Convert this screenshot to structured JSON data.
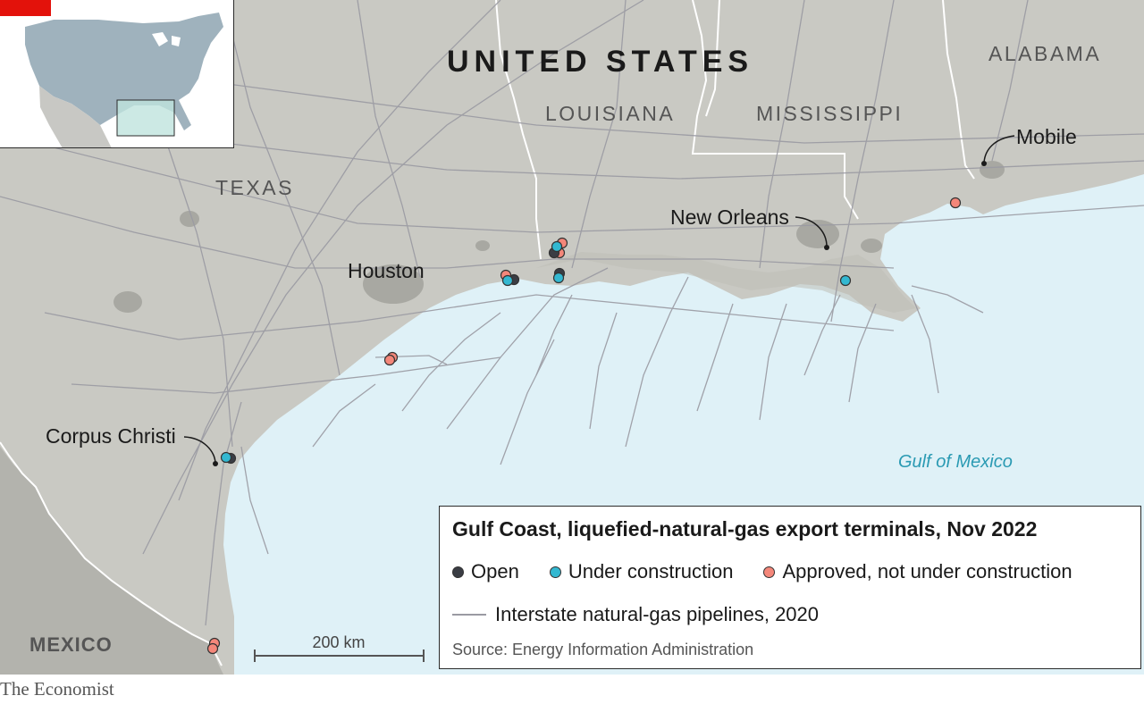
{
  "colors": {
    "land": "#c9c9c3",
    "water": "#dff1f7",
    "pipeline": "#9a9aa2",
    "open": "#3a3d44",
    "under_construction": "#33b8d1",
    "approved": "#f4877a",
    "gulf_label": "#2a9ab3",
    "brand_red": "#e3120b"
  },
  "map": {
    "country_label": "UNITED STATES",
    "state_labels": {
      "alabama": "ALABAMA",
      "louisiana": "LOUISIANA",
      "mississippi": "MISSISSIPPI",
      "texas": "TEXAS",
      "mexico": "MEXICO"
    },
    "city_labels": {
      "mobile": "Mobile",
      "new_orleans": "New Orleans",
      "houston": "Houston",
      "corpus_christi": "Corpus Christi"
    },
    "water_label": "Gulf of Mexico",
    "scale_label": "200 km"
  },
  "legend": {
    "title": "Gulf Coast, liquefied-natural-gas export terminals, Nov 2022",
    "items": [
      {
        "label": "Open",
        "status": "open"
      },
      {
        "label": "Under construction",
        "status": "under_construction"
      },
      {
        "label": "Approved, not under construction",
        "status": "approved"
      }
    ],
    "pipeline_label": "Interstate natural-gas pipelines, 2020",
    "source": "Source: Energy Information Administration"
  },
  "footer": {
    "brand": "The Economist"
  }
}
